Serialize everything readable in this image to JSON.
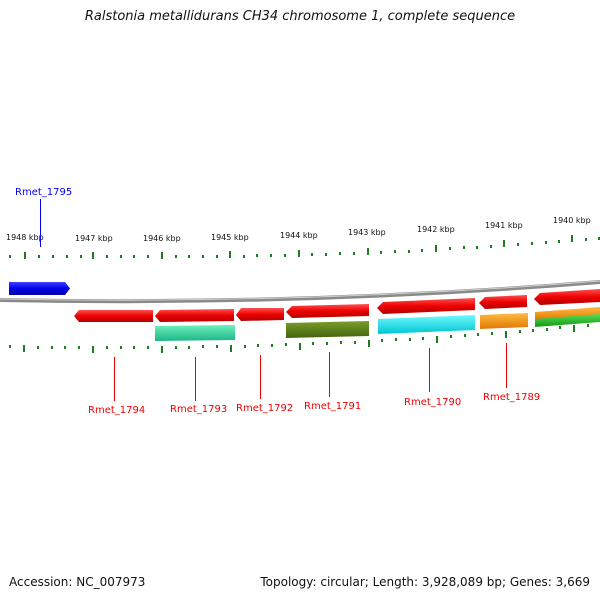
{
  "header": {
    "title": "Ralstonia metallidurans CH34 chromosome 1, complete sequence"
  },
  "footer": {
    "accession": "Accession: NC_007973",
    "summary": "Topology: circular; Length: 3,928,089 bp; Genes: 3,669"
  },
  "ruler": {
    "labels": [
      "1948 kbp",
      "1947 kbp",
      "1946 kbp",
      "1945 kbp",
      "1944 kbp",
      "1943 kbp",
      "1942 kbp",
      "1941 kbp",
      "1940 kbp"
    ]
  },
  "genes": [
    {
      "label": "Rmet_1795",
      "strand": "forward",
      "color": "#0000ee"
    },
    {
      "label": "Rmet_1794",
      "strand": "reverse",
      "color": "#ee0000"
    },
    {
      "label": "Rmet_1793",
      "strand": "reverse",
      "color": "#ee0000"
    },
    {
      "label": "Rmet_1792",
      "strand": "reverse",
      "color": "#ee0000"
    },
    {
      "label": "Rmet_1791",
      "strand": "reverse",
      "color": "#ee0000"
    },
    {
      "label": "Rmet_1790",
      "strand": "reverse",
      "color": "#ee0000"
    },
    {
      "label": "Rmet_1789",
      "strand": "reverse",
      "color": "#ee0000"
    }
  ],
  "colors": {
    "forward_gene": "#0000ee",
    "reverse_gene": "#ee0000",
    "cog_green": "#2ecf9a",
    "cog_olive": "#5a7d17",
    "cog_cyan": "#00e5ee",
    "cog_orange": "#ff9a00",
    "cog_lime": "#22bb22",
    "tick": "#1e7d1e",
    "backbone": "#8a8a8a"
  }
}
